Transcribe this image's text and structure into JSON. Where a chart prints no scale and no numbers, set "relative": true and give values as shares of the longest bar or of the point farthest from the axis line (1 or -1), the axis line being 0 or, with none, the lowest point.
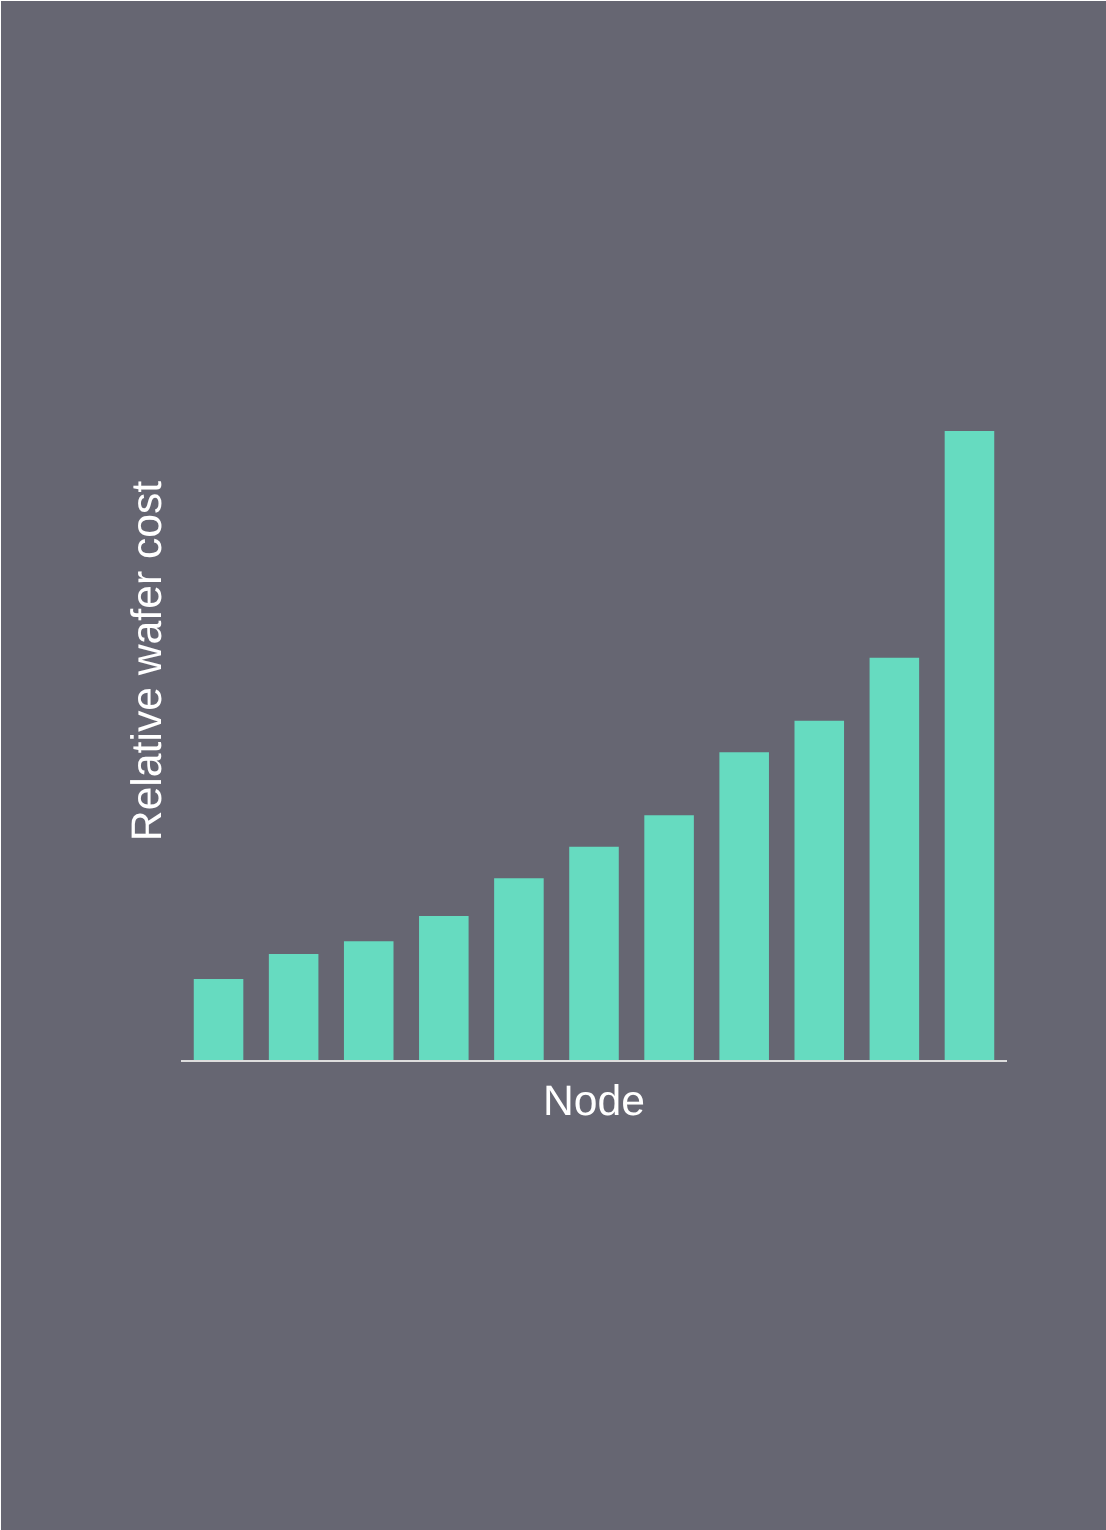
{
  "chart_data": {
    "type": "bar",
    "relative": true,
    "xlabel": "Node",
    "ylabel": "Relative wafer cost",
    "categories": [
      null,
      null,
      null,
      null,
      null,
      null,
      null,
      null,
      null,
      null,
      null
    ],
    "color": "#66dbc0",
    "values": [
      0.13,
      0.17,
      0.19,
      0.23,
      0.29,
      0.34,
      0.39,
      0.49,
      0.54,
      0.64,
      1.0
    ],
    "grid": false
  }
}
